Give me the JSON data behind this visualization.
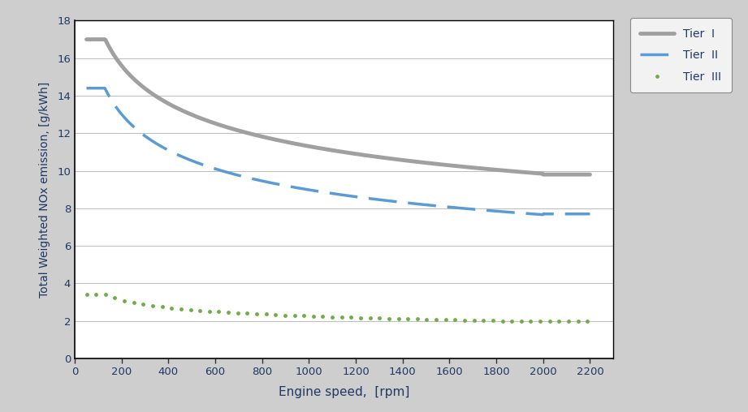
{
  "xlabel": "Engine speed,  [rpm]",
  "ylabel": "Total Weighted NOx emission, [g/kWh]",
  "xlim": [
    0,
    2300
  ],
  "ylim": [
    0,
    18
  ],
  "yticks": [
    0,
    2,
    4,
    6,
    8,
    10,
    12,
    14,
    16,
    18
  ],
  "xticks": [
    0,
    200,
    400,
    600,
    800,
    1000,
    1200,
    1400,
    1600,
    1800,
    2000,
    2200
  ],
  "background_color": "#cecece",
  "plot_background": "#ffffff",
  "tier1_color": "#a0a0a0",
  "tier2_color": "#5b9bd5",
  "tier3_color": "#70ad47",
  "text_color": "#1f3864",
  "tick_color": "#333333",
  "grid_color": "#c0c0c0",
  "legend_bg": "#f2f2f2",
  "tier1_lw": 3.5,
  "tier2_lw": 2.5,
  "tier3_lw": 2.0
}
